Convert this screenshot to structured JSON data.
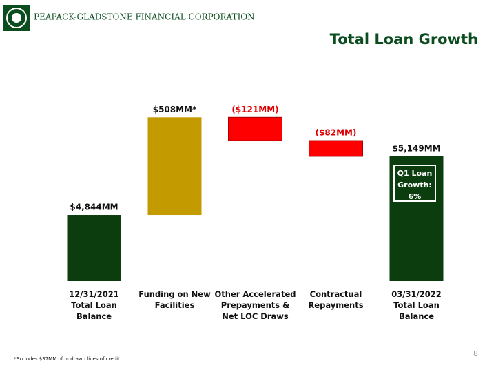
{
  "header": {
    "company": "PEAPACK-GLADSTONE FINANCIAL CORPORATION"
  },
  "chart_data": {
    "type": "waterfall",
    "title": "Total Loan Growth",
    "categories": [
      "12/31/2021\nTotal Loan Balance",
      "Funding on New\nFacilities",
      "Other Accelerated\nPrepayments &\nNet LOC Draws",
      "Contractual\nRepayments",
      "03/31/2022\nTotal Loan Balance"
    ],
    "values": [
      4844,
      508,
      -121,
      -82,
      5149
    ],
    "value_labels": [
      "$4,844MM",
      "$508MM*",
      "($121MM)",
      "($82MM)",
      "$5,149MM"
    ],
    "totals": [
      true,
      false,
      false,
      false,
      true
    ],
    "colors": [
      "#0b3d0e",
      "#c39a00",
      "#ff0000",
      "#ff0000",
      "#0b3d0e"
    ],
    "ylim": [
      4500,
      5500
    ],
    "annotation": "Q1 Loan\nGrowth:\n6%"
  },
  "footnote": "*Excludes $37MM of undrawn lines of credit.",
  "page_number": "8"
}
